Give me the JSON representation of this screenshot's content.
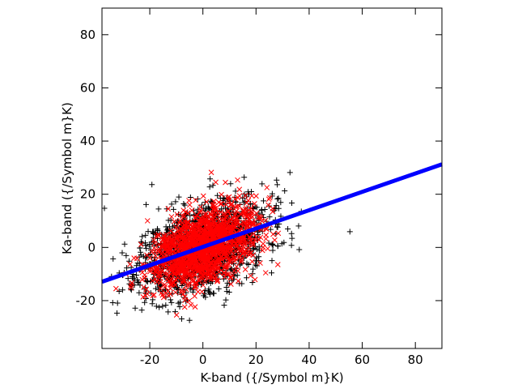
{
  "chart_data": {
    "type": "scatter",
    "xlabel": "K-band ({/Symbol m}K)",
    "ylabel": "Ka-band ({/Symbol m}K)",
    "xlim": [
      -38,
      90
    ],
    "ylim": [
      -38,
      90
    ],
    "x_ticks": [
      -20,
      0,
      20,
      40,
      60,
      80
    ],
    "y_ticks": [
      -20,
      0,
      20,
      40,
      60,
      80
    ],
    "grid": false,
    "legend": false,
    "scatter_clouds": [
      {
        "marker": "+",
        "color": "#000000",
        "center": [
          0,
          0
        ],
        "sx": 12,
        "sy": 9,
        "corr": 0.45,
        "count": 1500,
        "seed": 11
      },
      {
        "marker": "x",
        "color": "#ff0000",
        "center": [
          0,
          0
        ],
        "sx": 10,
        "sy": 7.5,
        "corr": 0.45,
        "count": 1500,
        "seed": 29
      }
    ],
    "fit_line": {
      "color": "#0000ff",
      "slope": 0.345,
      "intercept": 0.2,
      "x_range": [
        -38,
        90
      ]
    }
  }
}
